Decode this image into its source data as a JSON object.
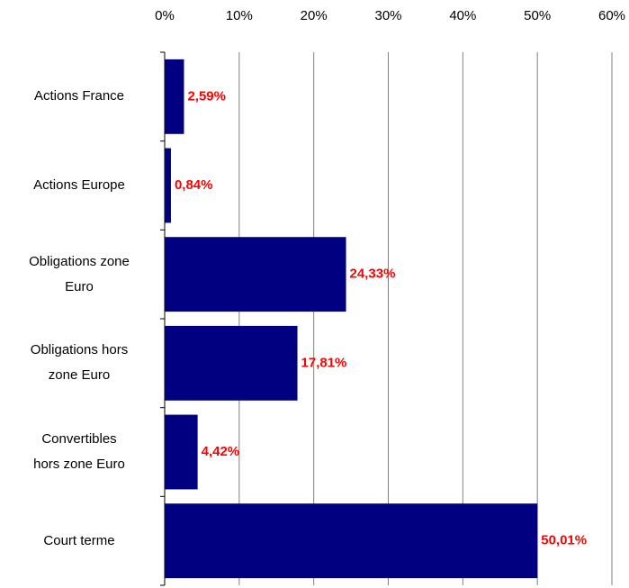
{
  "chart_data": {
    "type": "hbar",
    "categories": [
      "Actions France",
      "Actions Europe",
      "Obligations zone\nEuro",
      "Obligations hors\nzone Euro",
      "Convertibles\nhors zone Euro",
      "Court terme"
    ],
    "values": [
      2.59,
      0.84,
      24.33,
      17.81,
      4.42,
      50.01
    ],
    "value_labels": [
      "2,59%",
      "0,84%",
      "24,33%",
      "17,81%",
      "4,42%",
      "50,01%"
    ],
    "color": "#000080",
    "label_color": "#ff0000",
    "xlim": [
      0,
      60
    ],
    "xticks": [
      {
        "value": 0,
        "label": "0%"
      },
      {
        "value": 10,
        "label": "10%"
      },
      {
        "value": 20,
        "label": "20%"
      },
      {
        "value": 30,
        "label": "30%"
      },
      {
        "value": 40,
        "label": "40%"
      },
      {
        "value": 50,
        "label": "50%"
      },
      {
        "value": 60,
        "label": "60%"
      }
    ],
    "grid": true
  }
}
